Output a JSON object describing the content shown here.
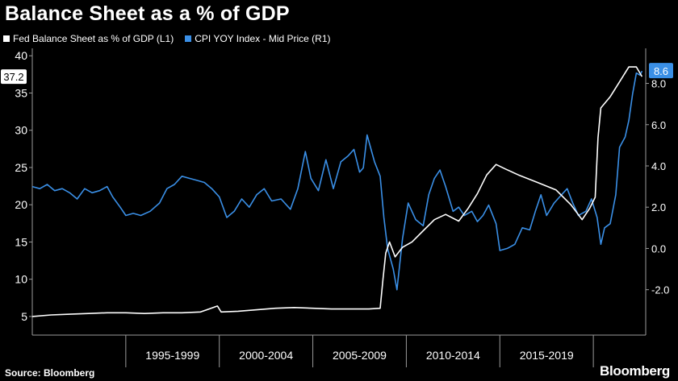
{
  "header": {
    "title": "Balance Sheet as a % of GDP"
  },
  "footer": {
    "source": "Source: Bloomberg",
    "brand": "Bloomberg"
  },
  "colors": {
    "fed": "#ffffff",
    "cpi": "#3a8fe6",
    "background": "#000000"
  },
  "chart_data": {
    "type": "line",
    "title": "Balance Sheet as a % of GDP",
    "legend": [
      "Fed Balance Sheet as % of GDP (L1)",
      "CPI YOY Index - Mid Price (R1)"
    ],
    "legend_placement": "top-left",
    "grid": false,
    "x_ticks": [
      "1995-1999",
      "2000-2004",
      "2005-2009",
      "2010-2014",
      "2015-2019"
    ],
    "xlim": [
      1990,
      2022.8
    ],
    "y_left": {
      "ticks": [
        "5",
        "10",
        "15",
        "20",
        "25",
        "30",
        "35",
        "40"
      ],
      "lim": [
        2.5,
        41
      ]
    },
    "y_right": {
      "ticks": [
        "-2.0",
        "0.0",
        "2.0",
        "4.0",
        "6.0",
        "8.0"
      ],
      "lim": [
        -4.2,
        9.7
      ]
    },
    "last_values": {
      "left": "37.2",
      "right": "8.6"
    },
    "series": [
      {
        "name": "Fed Balance Sheet as % of GDP (L1)",
        "axis": "left",
        "points": [
          [
            1990.0,
            5.0
          ],
          [
            1991.0,
            5.2
          ],
          [
            1992.0,
            5.3
          ],
          [
            1993.0,
            5.4
          ],
          [
            1994.0,
            5.5
          ],
          [
            1995.0,
            5.5
          ],
          [
            1996.0,
            5.4
          ],
          [
            1997.0,
            5.5
          ],
          [
            1998.0,
            5.5
          ],
          [
            1999.0,
            5.6
          ],
          [
            1999.9,
            6.4
          ],
          [
            2000.1,
            5.6
          ],
          [
            2001.0,
            5.7
          ],
          [
            2002.0,
            5.9
          ],
          [
            2003.0,
            6.1
          ],
          [
            2004.0,
            6.2
          ],
          [
            2005.0,
            6.1
          ],
          [
            2006.0,
            6.0
          ],
          [
            2007.0,
            6.0
          ],
          [
            2008.0,
            6.0
          ],
          [
            2008.6,
            6.1
          ],
          [
            2008.75,
            10.0
          ],
          [
            2008.9,
            13.5
          ],
          [
            2009.1,
            15.0
          ],
          [
            2009.4,
            13.0
          ],
          [
            2009.8,
            14.3
          ],
          [
            2010.3,
            15.0
          ],
          [
            2010.9,
            16.5
          ],
          [
            2011.5,
            18.0
          ],
          [
            2012.1,
            18.7
          ],
          [
            2012.8,
            17.8
          ],
          [
            2013.3,
            19.5
          ],
          [
            2013.8,
            21.5
          ],
          [
            2014.3,
            24.0
          ],
          [
            2014.8,
            25.4
          ],
          [
            2015.3,
            24.8
          ],
          [
            2016.0,
            24.0
          ],
          [
            2017.0,
            23.0
          ],
          [
            2018.0,
            22.0
          ],
          [
            2018.8,
            20.0
          ],
          [
            2019.4,
            18.0
          ],
          [
            2019.8,
            19.5
          ],
          [
            2020.1,
            21.0
          ],
          [
            2020.25,
            29.0
          ],
          [
            2020.4,
            33.0
          ],
          [
            2020.9,
            34.5
          ],
          [
            2021.4,
            36.5
          ],
          [
            2021.9,
            38.5
          ],
          [
            2022.3,
            38.5
          ],
          [
            2022.6,
            37.2
          ]
        ]
      },
      {
        "name": "CPI YOY Index - Mid Price (R1)",
        "axis": "right",
        "points": [
          [
            1990.0,
            3.0
          ],
          [
            1990.4,
            2.9
          ],
          [
            1990.8,
            3.1
          ],
          [
            1991.2,
            2.8
          ],
          [
            1991.6,
            2.9
          ],
          [
            1992.0,
            2.7
          ],
          [
            1992.4,
            2.4
          ],
          [
            1992.8,
            2.9
          ],
          [
            1993.2,
            2.7
          ],
          [
            1993.6,
            2.8
          ],
          [
            1994.0,
            3.0
          ],
          [
            1994.3,
            2.5
          ],
          [
            1994.7,
            2.0
          ],
          [
            1995.0,
            1.6
          ],
          [
            1995.4,
            1.7
          ],
          [
            1995.8,
            1.6
          ],
          [
            1996.3,
            1.8
          ],
          [
            1996.8,
            2.2
          ],
          [
            1997.2,
            2.9
          ],
          [
            1997.6,
            3.1
          ],
          [
            1998.0,
            3.5
          ],
          [
            1998.4,
            3.4
          ],
          [
            1998.8,
            3.3
          ],
          [
            1999.2,
            3.2
          ],
          [
            1999.6,
            2.9
          ],
          [
            2000.0,
            2.5
          ],
          [
            2000.4,
            1.5
          ],
          [
            2000.8,
            1.8
          ],
          [
            2001.2,
            2.4
          ],
          [
            2001.6,
            2.0
          ],
          [
            2002.0,
            2.6
          ],
          [
            2002.4,
            2.9
          ],
          [
            2002.8,
            2.3
          ],
          [
            2003.3,
            2.4
          ],
          [
            2003.8,
            1.9
          ],
          [
            2004.2,
            2.9
          ],
          [
            2004.6,
            4.7
          ],
          [
            2004.9,
            3.4
          ],
          [
            2005.3,
            2.8
          ],
          [
            2005.7,
            4.3
          ],
          [
            2006.1,
            2.9
          ],
          [
            2006.5,
            4.2
          ],
          [
            2006.9,
            4.5
          ],
          [
            2007.2,
            4.8
          ],
          [
            2007.5,
            3.7
          ],
          [
            2007.7,
            3.9
          ],
          [
            2007.9,
            5.5
          ],
          [
            2008.3,
            4.2
          ],
          [
            2008.6,
            3.5
          ],
          [
            2008.8,
            1.5
          ],
          [
            2009.0,
            0.0
          ],
          [
            2009.3,
            -1.0
          ],
          [
            2009.5,
            -2.0
          ],
          [
            2009.8,
            0.5
          ],
          [
            2010.1,
            2.2
          ],
          [
            2010.5,
            1.4
          ],
          [
            2010.9,
            1.1
          ],
          [
            2011.2,
            2.6
          ],
          [
            2011.5,
            3.4
          ],
          [
            2011.8,
            3.8
          ],
          [
            2012.1,
            3.0
          ],
          [
            2012.5,
            1.8
          ],
          [
            2012.8,
            2.0
          ],
          [
            2013.1,
            1.6
          ],
          [
            2013.5,
            1.8
          ],
          [
            2013.8,
            1.3
          ],
          [
            2014.1,
            1.6
          ],
          [
            2014.4,
            2.1
          ],
          [
            2014.8,
            1.2
          ],
          [
            2015.0,
            -0.1
          ],
          [
            2015.4,
            0.0
          ],
          [
            2015.8,
            0.2
          ],
          [
            2016.2,
            1.0
          ],
          [
            2016.6,
            0.9
          ],
          [
            2016.9,
            1.8
          ],
          [
            2017.2,
            2.6
          ],
          [
            2017.5,
            1.6
          ],
          [
            2017.9,
            2.2
          ],
          [
            2018.2,
            2.5
          ],
          [
            2018.6,
            2.9
          ],
          [
            2018.9,
            2.2
          ],
          [
            2019.2,
            1.6
          ],
          [
            2019.6,
            1.8
          ],
          [
            2019.9,
            2.4
          ],
          [
            2020.2,
            1.5
          ],
          [
            2020.4,
            0.2
          ],
          [
            2020.6,
            1.0
          ],
          [
            2020.9,
            1.2
          ],
          [
            2021.2,
            2.6
          ],
          [
            2021.4,
            4.9
          ],
          [
            2021.7,
            5.4
          ],
          [
            2021.9,
            6.2
          ],
          [
            2022.1,
            7.5
          ],
          [
            2022.3,
            8.5
          ],
          [
            2022.5,
            8.4
          ],
          [
            2022.6,
            8.6
          ]
        ]
      }
    ]
  }
}
